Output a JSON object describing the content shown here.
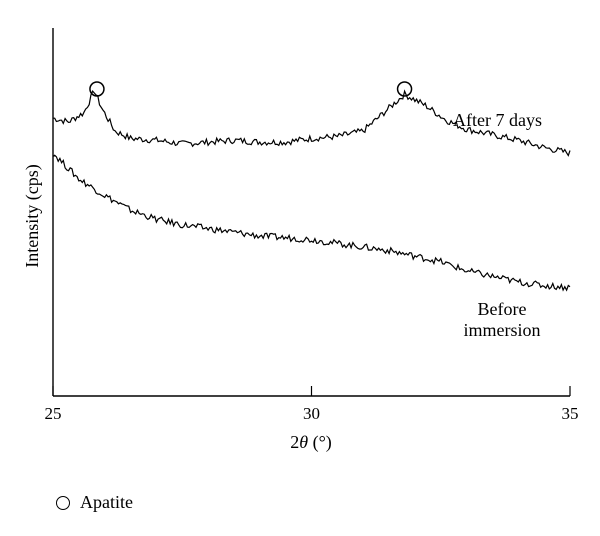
{
  "chart_data": {
    "type": "line",
    "xlabel_prefix": "2",
    "xlabel_symbol": "θ",
    "xlabel_unit": " (°)",
    "ylabel": "Intensity (cps)",
    "xlim": [
      25,
      35
    ],
    "x_ticks": [
      "25",
      "30",
      "35"
    ],
    "y_ticks_shown": false,
    "grid": false,
    "series": [
      {
        "name": "After 7 days",
        "x": [
          25.0,
          25.3,
          25.6,
          25.8,
          25.95,
          26.2,
          26.5,
          27.0,
          27.5,
          28.0,
          28.5,
          29.0,
          29.5,
          30.0,
          30.5,
          31.0,
          31.4,
          31.8,
          32.2,
          32.6,
          33.0,
          33.5,
          34.0,
          34.5,
          35.0
        ],
        "y": [
          0.755,
          0.745,
          0.77,
          0.83,
          0.78,
          0.72,
          0.7,
          0.695,
          0.685,
          0.69,
          0.695,
          0.69,
          0.69,
          0.7,
          0.705,
          0.72,
          0.77,
          0.82,
          0.79,
          0.75,
          0.725,
          0.71,
          0.695,
          0.675,
          0.66
        ]
      },
      {
        "name": "Before immersion",
        "x": [
          25.0,
          25.5,
          26.0,
          26.5,
          27.0,
          27.5,
          28.0,
          28.5,
          29.0,
          29.5,
          30.0,
          30.5,
          31.0,
          31.5,
          32.0,
          32.5,
          33.0,
          33.5,
          34.0,
          34.5,
          35.0
        ],
        "y": [
          0.66,
          0.59,
          0.545,
          0.505,
          0.48,
          0.465,
          0.455,
          0.445,
          0.435,
          0.43,
          0.425,
          0.415,
          0.405,
          0.395,
          0.38,
          0.365,
          0.34,
          0.325,
          0.31,
          0.3,
          0.295
        ]
      }
    ],
    "annotations": [
      {
        "text": "After 7 days",
        "near_series": "After 7 days"
      },
      {
        "text": "Before immersion",
        "near_series": "Before immersion"
      }
    ],
    "markers": [
      {
        "symbol": "circle",
        "meaning": "Apatite",
        "x": 25.85
      },
      {
        "symbol": "circle",
        "meaning": "Apatite",
        "x": 31.8
      }
    ]
  },
  "legend": {
    "apatite_label": "Apatite",
    "marker_icon": "open-circle-icon"
  },
  "labels": {
    "after_line": "After 7 days",
    "before_line1": "Before",
    "before_line2": "immersion"
  }
}
